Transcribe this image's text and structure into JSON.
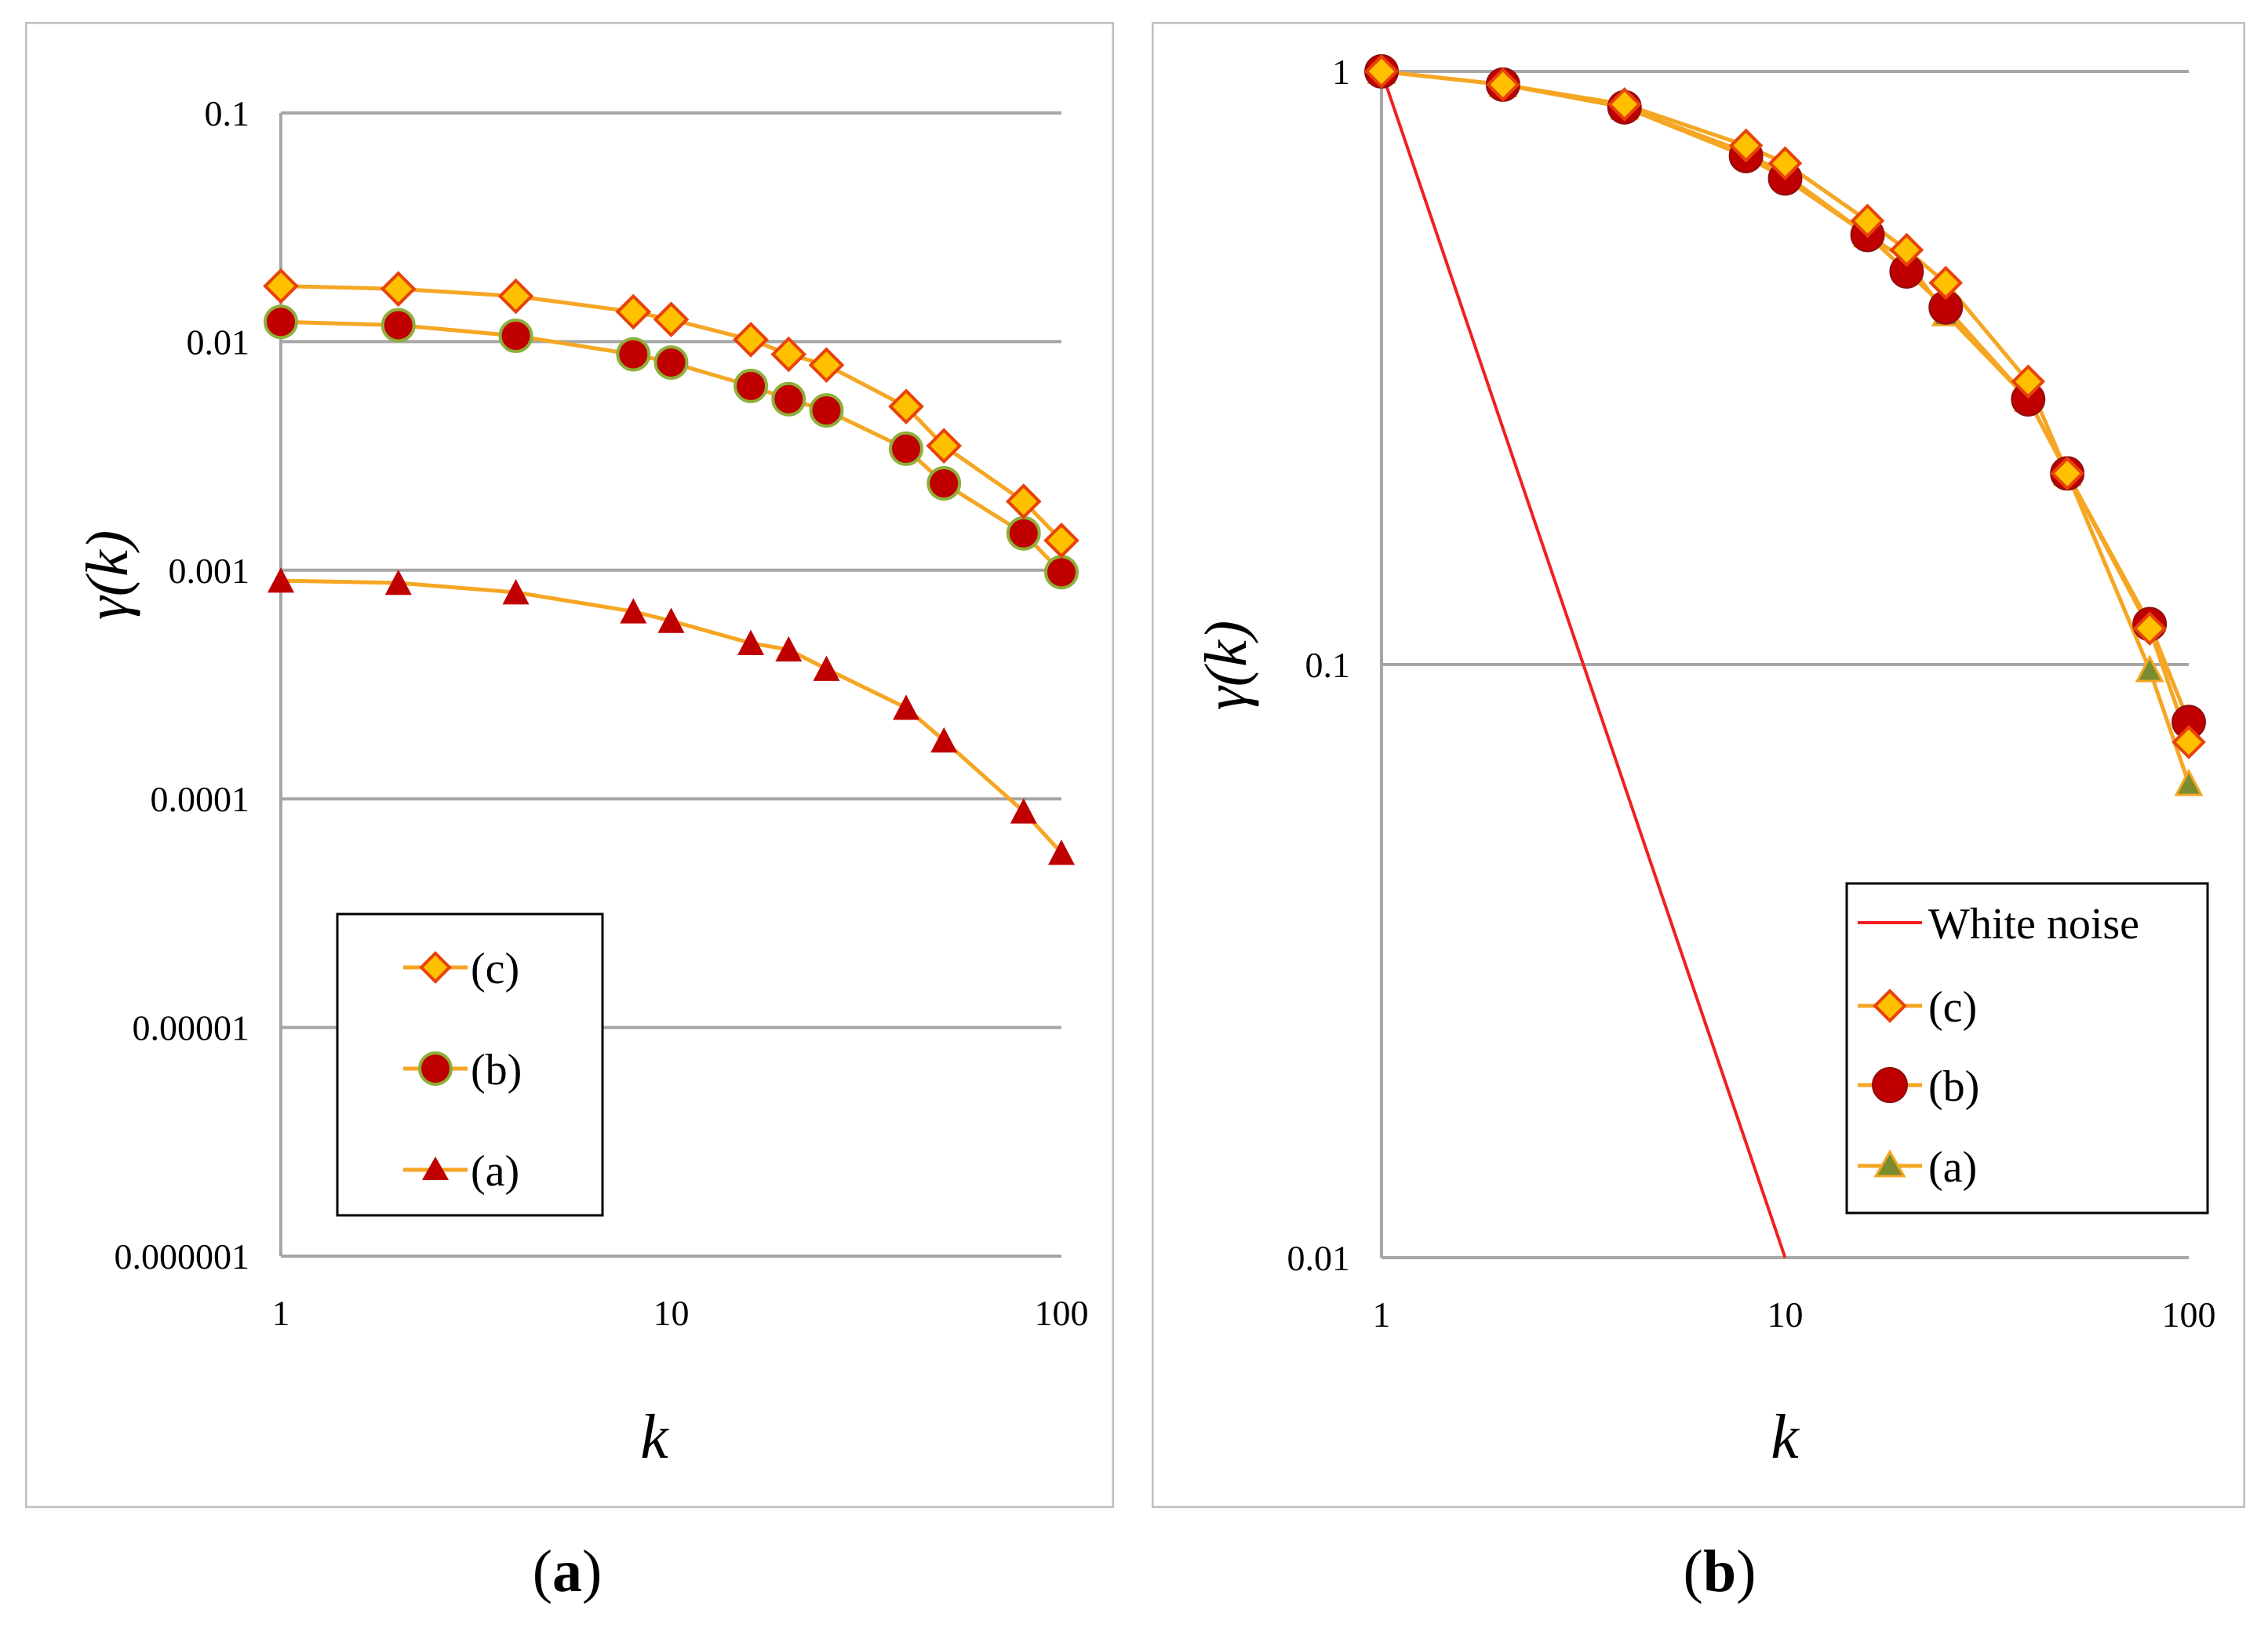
{
  "figure": {
    "caption_a": "(a)",
    "caption_b": "(b)",
    "caption_a_letter": "a",
    "caption_b_letter": "b"
  },
  "colors": {
    "series_line": "#F5A623",
    "diamond_fill": "#FFC000",
    "diamond_stroke": "#E8420C",
    "circle_fill": "#C00000",
    "circle_stroke": "#8DB03A",
    "triangle_fill": "#C00000",
    "triangle_b_fill": "#7A8C2E",
    "white_noise": "#F02020",
    "grid": "#A6A6A6"
  },
  "chart_data": [
    {
      "id": "panel-a",
      "type": "line",
      "scale": "log-log",
      "xlabel": "k",
      "ylabel": "γ(k)",
      "xlim": [
        1,
        100
      ],
      "ylim": [
        1e-06,
        0.1
      ],
      "x_ticks": [
        "1",
        "10",
        "100"
      ],
      "y_ticks": [
        "0.1",
        "0.01",
        "0.001",
        "0.0001",
        "0.00001",
        "0.000001"
      ],
      "legend_position": "bottom-left",
      "x": [
        1,
        2,
        4,
        8,
        10,
        16,
        20,
        25,
        40,
        50,
        80,
        100
      ],
      "series": [
        {
          "name": "(c)",
          "marker": "diamond",
          "values": [
            0.0175,
            0.017,
            0.0158,
            0.0135,
            0.0125,
            0.0102,
            0.0088,
            0.0079,
            0.0052,
            0.0035,
            0.002,
            0.00135
          ]
        },
        {
          "name": "(b)",
          "marker": "circle",
          "values": [
            0.0122,
            0.0118,
            0.0106,
            0.0088,
            0.0081,
            0.0064,
            0.0056,
            0.005,
            0.0034,
            0.0024,
            0.00145,
            0.00098
          ]
        },
        {
          "name": "(a)",
          "marker": "triangle",
          "values": [
            0.0009,
            0.00088,
            0.0008,
            0.00066,
            0.0006,
            0.00048,
            0.00045,
            0.00037,
            0.00025,
            0.00018,
            8.8e-05,
            5.8e-05
          ]
        }
      ]
    },
    {
      "id": "panel-b",
      "type": "line",
      "scale": "log-log",
      "xlabel": "k",
      "ylabel": "γ(k)",
      "xlim": [
        1,
        100
      ],
      "ylim": [
        0.01,
        1
      ],
      "x_ticks": [
        "1",
        "10",
        "100"
      ],
      "y_ticks": [
        "1",
        "0.1",
        "0.01"
      ],
      "legend_position": "bottom-right",
      "x": [
        1,
        2,
        4,
        8,
        10,
        16,
        20,
        25,
        40,
        50,
        80,
        100
      ],
      "white_noise": {
        "name": "White noise",
        "x": [
          1,
          10
        ],
        "values": [
          1,
          0.01
        ]
      },
      "series": [
        {
          "name": "(c)",
          "marker": "diamond",
          "values": [
            1,
            0.95,
            0.88,
            0.75,
            0.7,
            0.56,
            0.5,
            0.44,
            0.3,
            0.21,
            0.115,
            0.074
          ]
        },
        {
          "name": "(b)",
          "marker": "circle",
          "values": [
            1,
            0.95,
            0.87,
            0.72,
            0.66,
            0.53,
            0.46,
            0.4,
            0.28,
            0.21,
            0.117,
            0.08
          ]
        },
        {
          "name": "(a)",
          "marker": "triangle",
          "values": [
            1,
            0.95,
            0.87,
            0.73,
            0.67,
            0.53,
            0.48,
            0.39,
            0.28,
            0.21,
            0.098,
            0.063
          ]
        }
      ]
    }
  ]
}
